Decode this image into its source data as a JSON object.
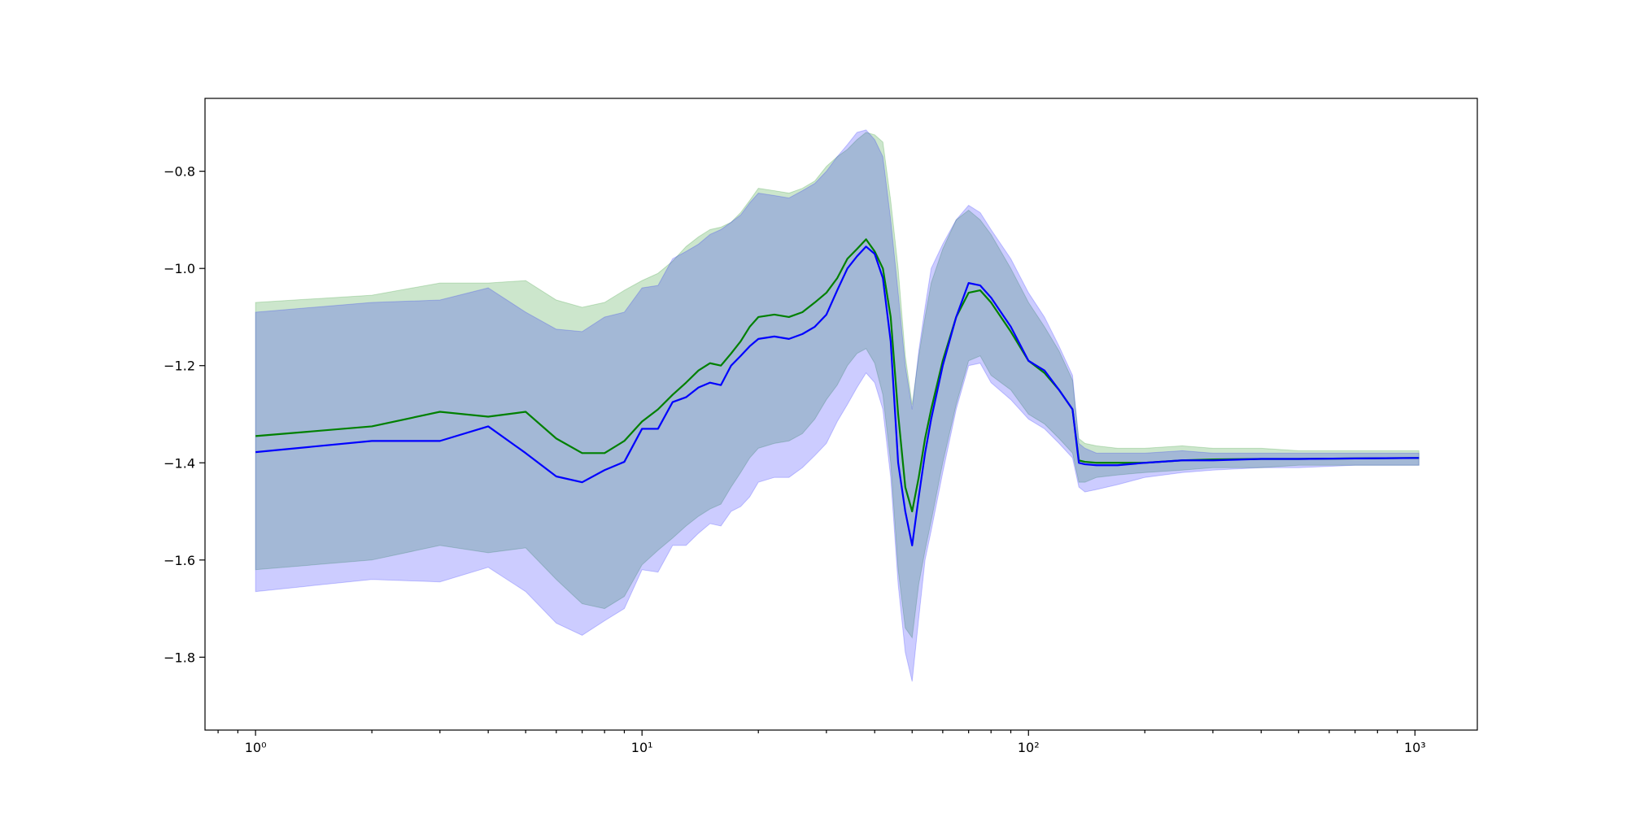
{
  "chart_data": {
    "type": "line",
    "title": "",
    "xlabel": "",
    "ylabel": "",
    "x_scale": "log",
    "xlim": [
      0.74,
      1450
    ],
    "ylim": [
      -1.95,
      -0.65
    ],
    "grid": false,
    "legend": "none",
    "x_major_ticks": [
      {
        "value": 1,
        "label": "10⁰"
      },
      {
        "value": 10,
        "label": "10¹"
      },
      {
        "value": 100,
        "label": "10²"
      },
      {
        "value": 1000,
        "label": "10³"
      }
    ],
    "y_ticks": [
      {
        "value": -0.8,
        "label": "−0.8"
      },
      {
        "value": -1.0,
        "label": "−1.0"
      },
      {
        "value": -1.2,
        "label": "−1.2"
      },
      {
        "value": -1.4,
        "label": "−1.4"
      },
      {
        "value": -1.6,
        "label": "−1.6"
      },
      {
        "value": -1.8,
        "label": "−1.8"
      }
    ],
    "series": [
      {
        "color": "#008000",
        "band_color": "#008000",
        "band_opacity": 0.2,
        "x": [
          1,
          2,
          3,
          4,
          5,
          6,
          7,
          8,
          9,
          10,
          11,
          12,
          13,
          14,
          15,
          16,
          17,
          18,
          19,
          20,
          22,
          24,
          26,
          28,
          30,
          32,
          34,
          36,
          38,
          40,
          42,
          44,
          46,
          48,
          50,
          52,
          54,
          56,
          60,
          65,
          70,
          75,
          80,
          90,
          100,
          110,
          120,
          130,
          135,
          140,
          150,
          170,
          200,
          250,
          300,
          400,
          500,
          700,
          1000,
          1024
        ],
        "y": [
          -1.345,
          -1.325,
          -1.295,
          -1.305,
          -1.295,
          -1.35,
          -1.38,
          -1.38,
          -1.355,
          -1.315,
          -1.29,
          -1.26,
          -1.235,
          -1.21,
          -1.195,
          -1.2,
          -1.175,
          -1.15,
          -1.12,
          -1.1,
          -1.095,
          -1.1,
          -1.09,
          -1.07,
          -1.05,
          -1.02,
          -0.98,
          -0.96,
          -0.94,
          -0.965,
          -1.0,
          -1.1,
          -1.3,
          -1.45,
          -1.5,
          -1.43,
          -1.35,
          -1.29,
          -1.19,
          -1.1,
          -1.05,
          -1.045,
          -1.07,
          -1.13,
          -1.19,
          -1.215,
          -1.25,
          -1.29,
          -1.395,
          -1.398,
          -1.4,
          -1.4,
          -1.4,
          -1.395,
          -1.393,
          -1.392,
          -1.392,
          -1.391,
          -1.39,
          -1.39
        ],
        "upper": [
          -1.07,
          -1.055,
          -1.03,
          -1.03,
          -1.025,
          -1.065,
          -1.08,
          -1.07,
          -1.045,
          -1.025,
          -1.01,
          -0.985,
          -0.955,
          -0.935,
          -0.92,
          -0.915,
          -0.905,
          -0.885,
          -0.86,
          -0.835,
          -0.84,
          -0.845,
          -0.835,
          -0.82,
          -0.79,
          -0.77,
          -0.755,
          -0.735,
          -0.72,
          -0.725,
          -0.74,
          -0.86,
          -1.0,
          -1.18,
          -1.28,
          -1.18,
          -1.1,
          -1.03,
          -0.96,
          -0.9,
          -0.88,
          -0.9,
          -0.93,
          -1.0,
          -1.07,
          -1.12,
          -1.17,
          -1.23,
          -1.35,
          -1.36,
          -1.365,
          -1.37,
          -1.37,
          -1.365,
          -1.37,
          -1.37,
          -1.375,
          -1.375,
          -1.375,
          -1.375
        ],
        "lower": [
          -1.62,
          -1.6,
          -1.57,
          -1.585,
          -1.575,
          -1.64,
          -1.69,
          -1.7,
          -1.675,
          -1.61,
          -1.58,
          -1.555,
          -1.53,
          -1.51,
          -1.495,
          -1.485,
          -1.45,
          -1.42,
          -1.39,
          -1.37,
          -1.36,
          -1.355,
          -1.34,
          -1.31,
          -1.27,
          -1.24,
          -1.2,
          -1.175,
          -1.165,
          -1.195,
          -1.26,
          -1.4,
          -1.62,
          -1.74,
          -1.76,
          -1.65,
          -1.58,
          -1.52,
          -1.4,
          -1.28,
          -1.19,
          -1.18,
          -1.22,
          -1.25,
          -1.3,
          -1.32,
          -1.35,
          -1.38,
          -1.44,
          -1.44,
          -1.43,
          -1.425,
          -1.42,
          -1.415,
          -1.41,
          -1.41,
          -1.405,
          -1.405,
          -1.405,
          -1.405
        ]
      },
      {
        "color": "#0000ff",
        "band_color": "#0000ff",
        "band_opacity": 0.2,
        "x": [
          1,
          2,
          3,
          4,
          5,
          6,
          7,
          8,
          9,
          10,
          11,
          12,
          13,
          14,
          15,
          16,
          17,
          18,
          19,
          20,
          22,
          24,
          26,
          28,
          30,
          32,
          34,
          36,
          38,
          40,
          42,
          44,
          46,
          48,
          50,
          52,
          54,
          56,
          60,
          65,
          70,
          75,
          80,
          90,
          100,
          110,
          120,
          130,
          135,
          140,
          150,
          170,
          200,
          250,
          300,
          400,
          500,
          700,
          1000,
          1024
        ],
        "y": [
          -1.378,
          -1.355,
          -1.355,
          -1.325,
          -1.38,
          -1.428,
          -1.44,
          -1.415,
          -1.398,
          -1.33,
          -1.33,
          -1.275,
          -1.265,
          -1.245,
          -1.235,
          -1.24,
          -1.2,
          -1.18,
          -1.16,
          -1.145,
          -1.14,
          -1.145,
          -1.135,
          -1.12,
          -1.095,
          -1.045,
          -1.0,
          -0.975,
          -0.955,
          -0.97,
          -1.02,
          -1.15,
          -1.4,
          -1.5,
          -1.57,
          -1.47,
          -1.38,
          -1.31,
          -1.2,
          -1.1,
          -1.03,
          -1.035,
          -1.06,
          -1.12,
          -1.19,
          -1.21,
          -1.25,
          -1.29,
          -1.4,
          -1.403,
          -1.405,
          -1.405,
          -1.4,
          -1.395,
          -1.395,
          -1.392,
          -1.392,
          -1.391,
          -1.39,
          -1.39
        ],
        "upper": [
          -1.09,
          -1.07,
          -1.065,
          -1.04,
          -1.09,
          -1.125,
          -1.13,
          -1.1,
          -1.09,
          -1.04,
          -1.035,
          -0.98,
          -0.965,
          -0.95,
          -0.93,
          -0.92,
          -0.905,
          -0.89,
          -0.865,
          -0.845,
          -0.85,
          -0.855,
          -0.84,
          -0.825,
          -0.8,
          -0.77,
          -0.745,
          -0.72,
          -0.715,
          -0.735,
          -0.77,
          -0.9,
          -1.05,
          -1.2,
          -1.29,
          -1.17,
          -1.08,
          -1.0,
          -0.95,
          -0.9,
          -0.87,
          -0.885,
          -0.92,
          -0.98,
          -1.05,
          -1.1,
          -1.16,
          -1.22,
          -1.36,
          -1.37,
          -1.38,
          -1.38,
          -1.38,
          -1.375,
          -1.38,
          -1.38,
          -1.38,
          -1.38,
          -1.38,
          -1.38
        ],
        "lower": [
          -1.665,
          -1.64,
          -1.645,
          -1.615,
          -1.665,
          -1.73,
          -1.755,
          -1.725,
          -1.7,
          -1.62,
          -1.625,
          -1.57,
          -1.57,
          -1.545,
          -1.525,
          -1.53,
          -1.5,
          -1.49,
          -1.47,
          -1.44,
          -1.43,
          -1.43,
          -1.41,
          -1.385,
          -1.36,
          -1.315,
          -1.28,
          -1.245,
          -1.215,
          -1.235,
          -1.29,
          -1.43,
          -1.65,
          -1.79,
          -1.85,
          -1.72,
          -1.6,
          -1.54,
          -1.42,
          -1.29,
          -1.2,
          -1.195,
          -1.235,
          -1.27,
          -1.31,
          -1.33,
          -1.36,
          -1.39,
          -1.45,
          -1.46,
          -1.455,
          -1.445,
          -1.43,
          -1.42,
          -1.415,
          -1.41,
          -1.41,
          -1.405,
          -1.405,
          -1.405
        ]
      }
    ]
  }
}
